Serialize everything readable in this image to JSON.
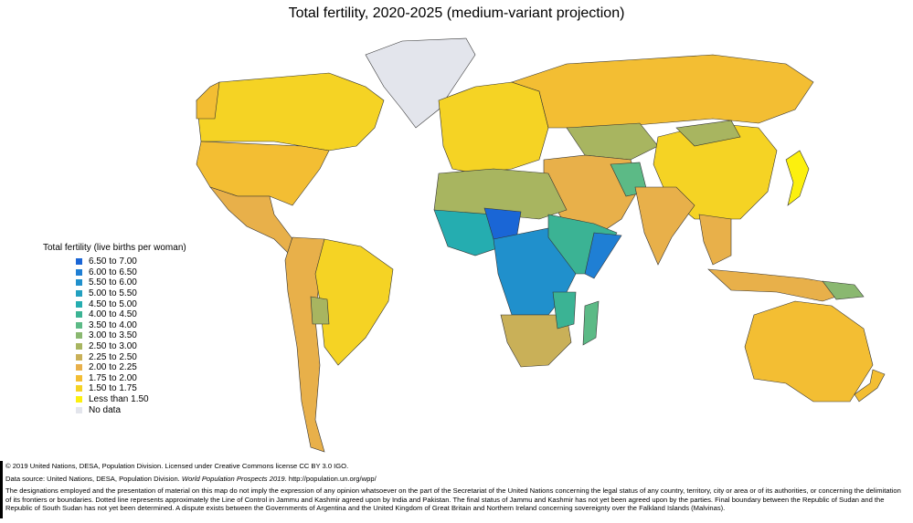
{
  "title": "Total fertility, 2020-2025 (medium-variant projection)",
  "legend": {
    "title": "Total fertility (live births per woman)",
    "items": [
      {
        "label": "6.50 to 7.00",
        "color": "#1a66d6"
      },
      {
        "label": "6.00 to 6.50",
        "color": "#1f7fd4"
      },
      {
        "label": "5.50 to 6.00",
        "color": "#2090cc"
      },
      {
        "label": "5.00 to 5.50",
        "color": "#22a0c0"
      },
      {
        "label": "4.50 to 5.00",
        "color": "#25adb0"
      },
      {
        "label": "4.00 to 4.50",
        "color": "#3bb394"
      },
      {
        "label": "3.50 to 4.00",
        "color": "#5cba86"
      },
      {
        "label": "3.00 to 3.50",
        "color": "#8ab870"
      },
      {
        "label": "2.50 to 3.00",
        "color": "#a8b560"
      },
      {
        "label": "2.25 to 2.50",
        "color": "#c9b058"
      },
      {
        "label": "2.00 to 2.25",
        "color": "#e8b04a"
      },
      {
        "label": "1.75 to 2.00",
        "color": "#f3be33"
      },
      {
        "label": "1.50 to 1.75",
        "color": "#f5d324"
      },
      {
        "label": "Less than 1.50",
        "color": "#fcf00e"
      },
      {
        "label": "No data",
        "color": "#e3e5ec"
      }
    ]
  },
  "footer": {
    "copyright": "© 2019 United Nations, DESA, Population Division. Licensed under Creative Commons license CC BY 3.0 IGO.",
    "source_prefix": "Data source: United Nations, DESA, Population Division. ",
    "source_title": "World Population Prospects 2019",
    "source_suffix": ". http://population.un.org/wpp/",
    "disclaimer": "The designations employed and the presentation of material on this map do not imply the expression of any opinion whatsoever on the part of the Secretariat of the United Nations concerning the legal status of any country, territory, city or area or of its authorities, or concerning the delimitation of its frontiers or boundaries. Dotted line represents approximately the Line of Control in Jammu and Kashmir agreed upon by India and Pakistan. The final status of Jammu and Kashmir has not yet been agreed upon by the parties. Final boundary between the Republic of Sudan and the Republic of South Sudan has not yet been determined. A dispute exists between the Governments of Argentina and the United Kingdom of Great Britain and Northern Ireland concerning sovereignty over the Falkland Islands (Malvinas)."
  }
}
